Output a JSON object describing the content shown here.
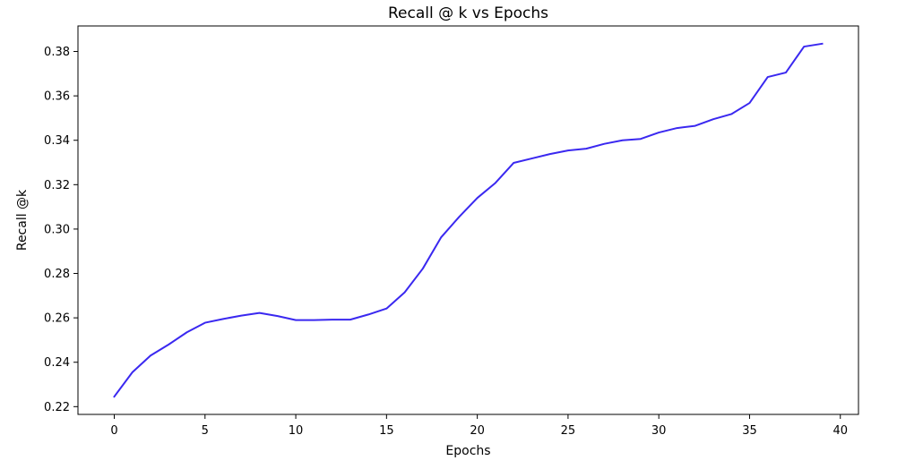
{
  "chart_data": {
    "type": "line",
    "title": "Recall @ k vs Epochs",
    "xlabel": "Epochs",
    "ylabel": "Recall @k",
    "xlim": [
      -2,
      41
    ],
    "ylim": [
      0.2165,
      0.3915
    ],
    "xticks": [
      0,
      5,
      10,
      15,
      20,
      25,
      30,
      35,
      40
    ],
    "xtick_labels": [
      "0",
      "5",
      "10",
      "15",
      "20",
      "25",
      "30",
      "35",
      "40"
    ],
    "yticks": [
      0.22,
      0.24,
      0.26,
      0.28,
      0.3,
      0.32,
      0.34,
      0.36,
      0.38
    ],
    "ytick_labels": [
      "0.22",
      "0.24",
      "0.26",
      "0.28",
      "0.30",
      "0.32",
      "0.34",
      "0.36",
      "0.38"
    ],
    "grid": false,
    "series": [
      {
        "color": "#3a28f0",
        "x": [
          0,
          1,
          2,
          3,
          4,
          5,
          6,
          7,
          8,
          9,
          10,
          11,
          12,
          13,
          14,
          15,
          16,
          17,
          18,
          19,
          20,
          21,
          22,
          23,
          24,
          25,
          26,
          27,
          28,
          29,
          30,
          31,
          32,
          33,
          34,
          35,
          36,
          37,
          38,
          39
        ],
        "y": [
          0.2245,
          0.2355,
          0.243,
          0.248,
          0.2535,
          0.2578,
          0.2595,
          0.261,
          0.2622,
          0.2608,
          0.259,
          0.259,
          0.2592,
          0.2592,
          0.2615,
          0.2642,
          0.2715,
          0.2822,
          0.2962,
          0.3055,
          0.314,
          0.3208,
          0.3298,
          0.3318,
          0.3338,
          0.3354,
          0.3362,
          0.3384,
          0.34,
          0.3406,
          0.3435,
          0.3455,
          0.3465,
          0.3495,
          0.3518,
          0.3568,
          0.3685,
          0.3705,
          0.3822,
          0.3835
        ]
      }
    ]
  }
}
